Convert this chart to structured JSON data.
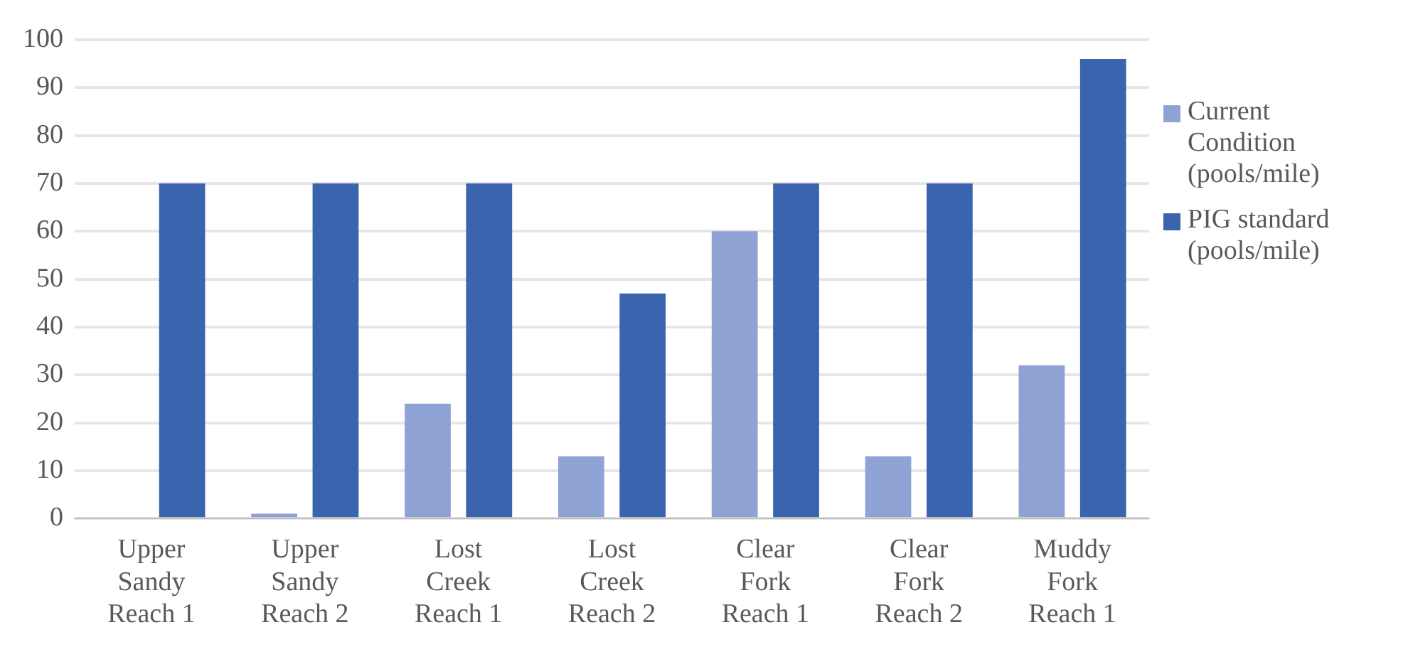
{
  "chart_data": {
    "type": "bar",
    "categories": [
      "Upper Sandy Reach 1",
      "Upper Sandy Reach 2",
      "Lost Creek Reach 1",
      "Lost Creek Reach 2",
      "Clear Fork Reach 1",
      "Clear Fork Reach 2",
      "Muddy Fork Reach 1"
    ],
    "series": [
      {
        "name": "Current Condition (pools/mile)",
        "color": "#8fa2d4",
        "values": [
          0,
          1,
          24,
          13,
          60,
          13,
          32
        ]
      },
      {
        "name": "PIG standard (pools/mile)",
        "color": "#3a64ad",
        "values": [
          70,
          70,
          70,
          47,
          70,
          70,
          96
        ]
      }
    ],
    "ylim": [
      0,
      100
    ],
    "yticks": [
      0,
      10,
      20,
      30,
      40,
      50,
      60,
      70,
      80,
      90,
      100
    ],
    "grid": "y",
    "legend": "right"
  }
}
